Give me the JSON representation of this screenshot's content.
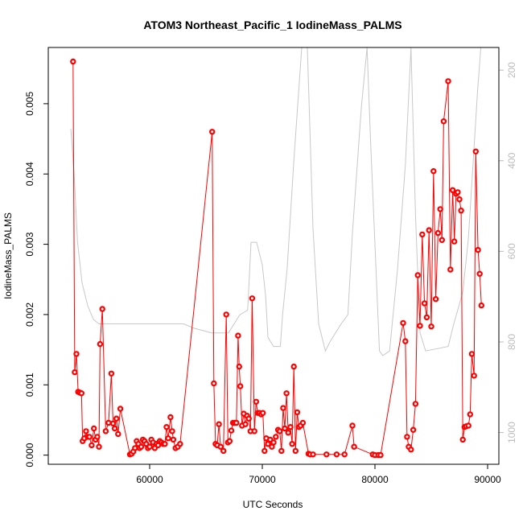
{
  "chart_data": {
    "type": "line",
    "title": "ATOM3 Northeast_Pacific_1 IodineMass_PALMS",
    "xlabel": "UTC Seconds",
    "ylabel": "IodineMass_PALMS",
    "xlim": [
      51000,
      91000
    ],
    "ylim": [
      -0.00013,
      0.0058
    ],
    "x_ticks": [
      60000,
      70000,
      80000,
      90000
    ],
    "y_ticks": [
      0.0,
      0.001,
      0.002,
      0.003,
      0.004,
      0.005
    ],
    "y_tick_labels": [
      "0.000",
      "0.001",
      "0.002",
      "0.003",
      "0.004",
      "0.005"
    ],
    "y2_ticks": [
      200,
      400,
      600,
      800,
      1000
    ],
    "y2_reversed": true,
    "y2lim": [
      150,
      1070
    ],
    "grid": false,
    "colors": {
      "series": "#ff0000",
      "altitude": "#c8c8c8",
      "axis": "#000000",
      "secondary_axis": "#bbbbbb"
    },
    "series": [
      {
        "values": [
          [
            53200,
            0.0056
          ],
          [
            53350,
            0.00118
          ],
          [
            53500,
            0.00144
          ],
          [
            53650,
            0.0009
          ],
          [
            53800,
            0.00089
          ],
          [
            53950,
            0.00088
          ],
          [
            54050,
            0.0002
          ],
          [
            54200,
            0.00024
          ],
          [
            54350,
            0.00034
          ],
          [
            54500,
            0.00026
          ],
          [
            54650,
            0.00026
          ],
          [
            54850,
            0.00014
          ],
          [
            55050,
            0.00038
          ],
          [
            55200,
            0.00022
          ],
          [
            55350,
            0.00026
          ],
          [
            55500,
            0.00012
          ],
          [
            55600,
            0.00158
          ],
          [
            55800,
            0.00208
          ],
          [
            56100,
            0.00034
          ],
          [
            56350,
            0.00046
          ],
          [
            56600,
            0.00116
          ],
          [
            56750,
            0.00045
          ],
          [
            56900,
            0.00038
          ],
          [
            57050,
            0.00052
          ],
          [
            57200,
            0.0003
          ],
          [
            57400,
            0.00066
          ],
          [
            58250,
            1e-05
          ],
          [
            58400,
            2e-05
          ],
          [
            58550,
            5e-05
          ],
          [
            58700,
            0.0001
          ],
          [
            58850,
            0.0002
          ],
          [
            59000,
            0.00016
          ],
          [
            59100,
            0.0001
          ],
          [
            59250,
            0.00012
          ],
          [
            59400,
            0.00022
          ],
          [
            59550,
            0.0002
          ],
          [
            59700,
            0.00016
          ],
          [
            59850,
            0.0001
          ],
          [
            60000,
            0.00012
          ],
          [
            60150,
            0.00022
          ],
          [
            60300,
            0.00018
          ],
          [
            60450,
            0.0001
          ],
          [
            60600,
            0.00016
          ],
          [
            60750,
            0.00014
          ],
          [
            60900,
            0.0002
          ],
          [
            61050,
            0.00018
          ],
          [
            61200,
            0.00016
          ],
          [
            61350,
            0.00016
          ],
          [
            61500,
            0.0004
          ],
          [
            61650,
            0.00024
          ],
          [
            61850,
            0.00054
          ],
          [
            62000,
            0.00034
          ],
          [
            62100,
            0.00022
          ],
          [
            62300,
            0.0001
          ],
          [
            62500,
            0.00012
          ],
          [
            62700,
            0.00016
          ],
          [
            65550,
            0.0046
          ],
          [
            65700,
            0.00102
          ],
          [
            65850,
            0.00016
          ],
          [
            66000,
            0.00014
          ],
          [
            66150,
            0.00044
          ],
          [
            66300,
            0.00012
          ],
          [
            66550,
            6e-05
          ],
          [
            66800,
            0.002
          ],
          [
            66950,
            0.00018
          ],
          [
            67100,
            0.0002
          ],
          [
            67250,
            0.00035
          ],
          [
            67400,
            0.00046
          ],
          [
            67550,
            0.00046
          ],
          [
            67700,
            0.00046
          ],
          [
            67850,
            0.0017
          ],
          [
            67950,
            0.00126
          ],
          [
            68050,
            0.00098
          ],
          [
            68200,
            0.00042
          ],
          [
            68350,
            0.00059
          ],
          [
            68500,
            0.00044
          ],
          [
            68650,
            0.00056
          ],
          [
            68800,
            0.00052
          ],
          [
            68950,
            0.00034
          ],
          [
            69100,
            0.00223
          ],
          [
            69300,
            0.00034
          ],
          [
            69450,
            0.00076
          ],
          [
            69600,
            0.0006
          ],
          [
            69750,
            0.0006
          ],
          [
            69900,
            0.00058
          ],
          [
            70050,
            0.0006
          ],
          [
            70200,
            6e-05
          ],
          [
            70350,
            0.00024
          ],
          [
            70500,
            0.00016
          ],
          [
            70700,
            0.00022
          ],
          [
            70850,
            0.00012
          ],
          [
            71000,
            0.00018
          ],
          [
            71200,
            0.00026
          ],
          [
            71400,
            0.00036
          ],
          [
            71550,
            0.00034
          ],
          [
            71700,
            6e-05
          ],
          [
            71850,
            0.00067
          ],
          [
            72000,
            0.00038
          ],
          [
            72150,
            0.00088
          ],
          [
            72300,
            0.00032
          ],
          [
            72500,
            0.0004
          ],
          [
            72650,
            0.00016
          ],
          [
            72800,
            0.00126
          ],
          [
            72950,
            6e-05
          ],
          [
            73100,
            0.00061
          ],
          [
            73250,
            0.0004
          ],
          [
            73400,
            0.00042
          ],
          [
            73600,
            0.00046
          ],
          [
            74100,
            2e-05
          ],
          [
            74250,
            1e-05
          ],
          [
            74500,
            1e-05
          ],
          [
            75700,
            1e-05
          ],
          [
            76600,
            1e-05
          ],
          [
            77300,
            1e-05
          ],
          [
            78000,
            0.00042
          ],
          [
            78150,
            0.00012
          ],
          [
            79800,
            1e-05
          ],
          [
            80000,
            0.0
          ],
          [
            80300,
            0.0
          ],
          [
            80500,
            0.0
          ],
          [
            82500,
            0.00188
          ],
          [
            82700,
            0.00162
          ],
          [
            82850,
            0.00026
          ],
          [
            83000,
            0.00012
          ],
          [
            83200,
            8e-05
          ],
          [
            83400,
            0.00036
          ],
          [
            83600,
            0.00073
          ],
          [
            83800,
            0.00256
          ],
          [
            84000,
            0.00184
          ],
          [
            84200,
            0.00314
          ],
          [
            84400,
            0.00216
          ],
          [
            84600,
            0.00196
          ],
          [
            84800,
            0.0032
          ],
          [
            85000,
            0.00183
          ],
          [
            85200,
            0.00404
          ],
          [
            85400,
            0.00222
          ],
          [
            85600,
            0.00316
          ],
          [
            85800,
            0.0035
          ],
          [
            85950,
            0.00306
          ],
          [
            86100,
            0.00475
          ],
          [
            86500,
            0.00532
          ],
          [
            86700,
            0.00264
          ],
          [
            86900,
            0.00377
          ],
          [
            87050,
            0.00304
          ],
          [
            87200,
            0.00372
          ],
          [
            87350,
            0.00374
          ],
          [
            87500,
            0.00364
          ],
          [
            87650,
            0.00348
          ],
          [
            87800,
            0.00022
          ],
          [
            87950,
            0.0004
          ],
          [
            88100,
            0.00041
          ],
          [
            88300,
            0.00042
          ],
          [
            88450,
            0.00058
          ],
          [
            88600,
            0.00144
          ],
          [
            88800,
            0.00113
          ],
          [
            88950,
            0.00432
          ],
          [
            89150,
            0.00292
          ],
          [
            89300,
            0.00258
          ],
          [
            89450,
            0.00213
          ]
        ]
      },
      {
        "axis": "secondary",
        "values": [
          [
            53000,
            330
          ],
          [
            53300,
            430
          ],
          [
            53600,
            580
          ],
          [
            54000,
            670
          ],
          [
            54500,
            720
          ],
          [
            55000,
            750
          ],
          [
            55500,
            760
          ],
          [
            57000,
            760
          ],
          [
            60000,
            760
          ],
          [
            63000,
            760
          ],
          [
            64000,
            770
          ],
          [
            65500,
            780
          ],
          [
            67000,
            780
          ],
          [
            67500,
            760
          ],
          [
            68000,
            740
          ],
          [
            68700,
            730
          ],
          [
            69000,
            580
          ],
          [
            69500,
            580
          ],
          [
            70000,
            630
          ],
          [
            70300,
            700
          ],
          [
            70500,
            790
          ],
          [
            71000,
            810
          ],
          [
            71600,
            810
          ],
          [
            71800,
            740
          ],
          [
            72200,
            640
          ],
          [
            72800,
            400
          ],
          [
            73500,
            150
          ],
          [
            74000,
            150
          ],
          [
            74500,
            550
          ],
          [
            75000,
            760
          ],
          [
            75600,
            820
          ],
          [
            76000,
            800
          ],
          [
            77000,
            760
          ],
          [
            77600,
            740
          ],
          [
            78000,
            560
          ],
          [
            78800,
            280
          ],
          [
            79300,
            150
          ],
          [
            79600,
            350
          ],
          [
            80400,
            820
          ],
          [
            80700,
            830
          ],
          [
            81300,
            820
          ],
          [
            82000,
            640
          ],
          [
            82700,
            410
          ],
          [
            83200,
            150
          ],
          [
            83600,
            520
          ],
          [
            84000,
            780
          ],
          [
            84500,
            820
          ],
          [
            86500,
            810
          ],
          [
            87000,
            760
          ],
          [
            87800,
            690
          ],
          [
            88300,
            570
          ],
          [
            88700,
            410
          ],
          [
            89100,
            250
          ],
          [
            89400,
            150
          ]
        ]
      }
    ]
  }
}
